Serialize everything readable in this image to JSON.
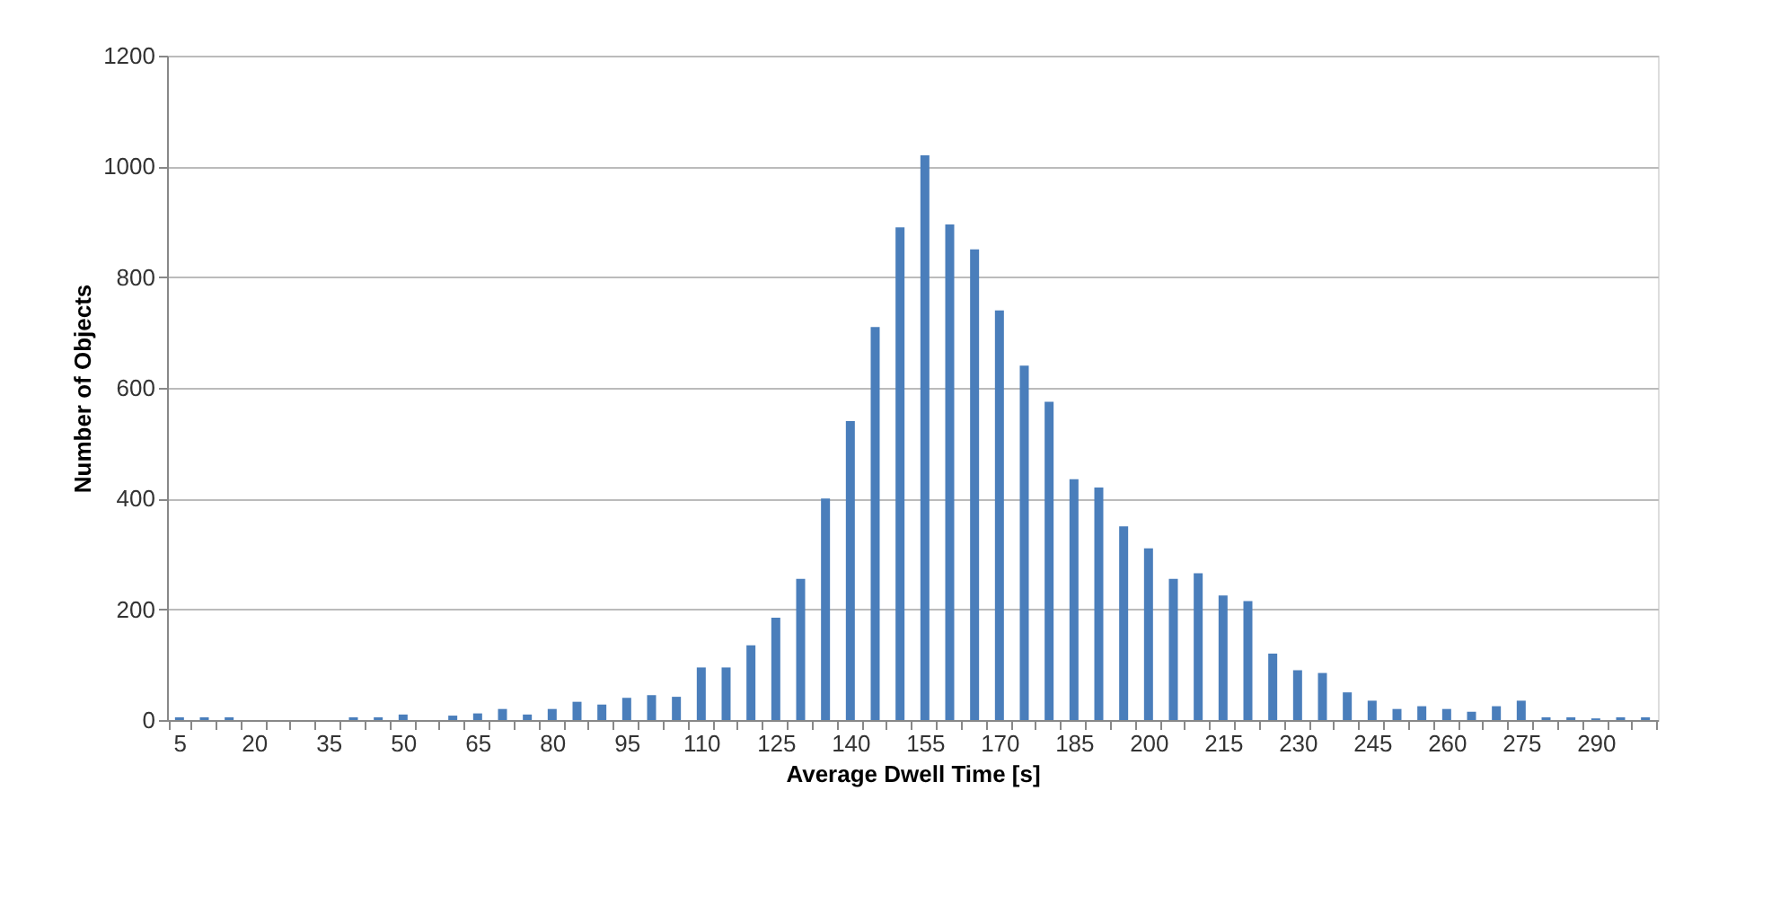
{
  "chart_data": {
    "type": "bar",
    "xlabel": "Average Dwell Time [s]",
    "ylabel": "Number of Objects",
    "categories": [
      "5",
      null,
      null,
      "20",
      null,
      null,
      "35",
      null,
      null,
      "50",
      null,
      null,
      "65",
      null,
      null,
      "80",
      null,
      null,
      "95",
      null,
      null,
      "110",
      null,
      null,
      "125",
      null,
      null,
      "140",
      null,
      null,
      "155",
      null,
      null,
      "170",
      null,
      null,
      "185",
      null,
      null,
      "200",
      null,
      null,
      "215",
      null,
      null,
      "230",
      null,
      null,
      "245",
      null,
      null,
      "260",
      null,
      null,
      "275",
      null,
      null,
      "290",
      null,
      null
    ],
    "values": [
      5,
      5,
      5,
      0,
      0,
      0,
      0,
      5,
      5,
      10,
      0,
      8,
      12,
      20,
      10,
      20,
      33,
      28,
      40,
      45,
      42,
      95,
      95,
      135,
      185,
      255,
      400,
      540,
      710,
      890,
      1020,
      895,
      850,
      740,
      640,
      575,
      435,
      420,
      350,
      310,
      255,
      265,
      225,
      215,
      120,
      90,
      85,
      50,
      35,
      20,
      25,
      20,
      15,
      25,
      35,
      5,
      5,
      3,
      5,
      5
    ],
    "color": "#4a7ebb",
    "ylim": [
      0,
      1200
    ],
    "yticks": [
      0,
      200,
      400,
      600,
      800,
      1000,
      1200
    ],
    "grid": "y"
  }
}
